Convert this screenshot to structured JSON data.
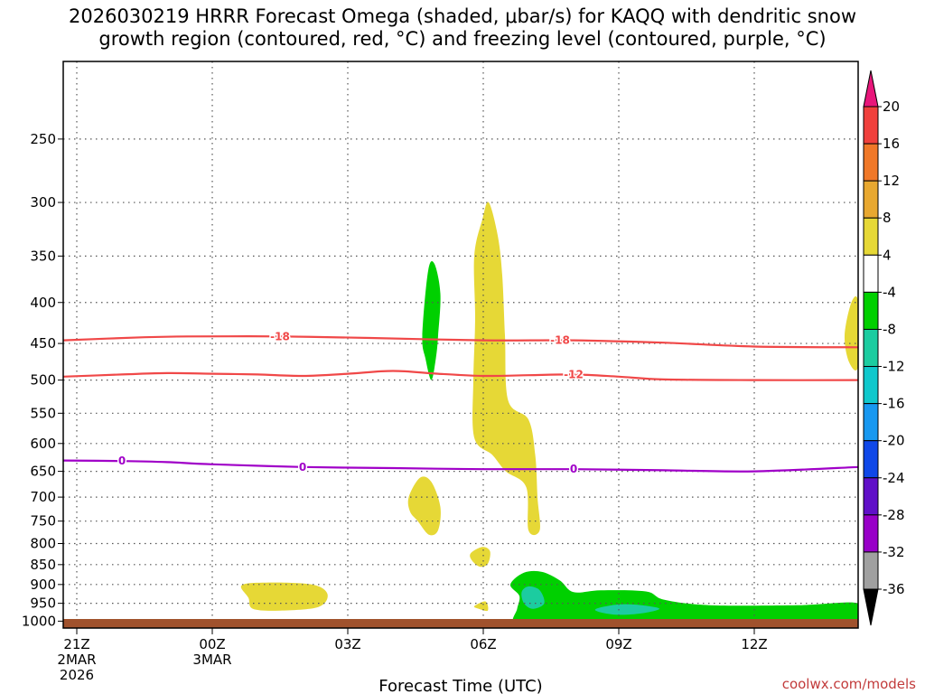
{
  "title_line1": "2026030219 HRRR Forecast Omega (shaded, μbar/s) for KAQQ with dendritic snow",
  "title_line2": "growth region (contoured, red, °C) and freezing level (contoured, purple, °C)",
  "credit": "coolwx.com/models",
  "chart_data": {
    "type": "time-height cross section",
    "xlabel": "Forecast Time (UTC)",
    "ylabel": "",
    "x_range_hours": [
      -3.3,
      14.3
    ],
    "ylim": [
      1020,
      200
    ],
    "y_scale": "log",
    "grid": true,
    "x_ticks": [
      {
        "hour": -3,
        "lines": [
          "21Z",
          "2MAR",
          "2026"
        ]
      },
      {
        "hour": 0,
        "lines": [
          "00Z",
          "3MAR"
        ]
      },
      {
        "hour": 3,
        "lines": [
          "03Z"
        ]
      },
      {
        "hour": 6,
        "lines": [
          "06Z"
        ]
      },
      {
        "hour": 9,
        "lines": [
          "09Z"
        ]
      },
      {
        "hour": 12,
        "lines": [
          "12Z"
        ]
      }
    ],
    "y_ticks": [
      250,
      300,
      350,
      400,
      450,
      500,
      550,
      600,
      650,
      700,
      750,
      800,
      850,
      900,
      950,
      1000
    ],
    "colorbar": {
      "labels": [
        "20",
        "16",
        "12",
        "8",
        "4",
        "-4",
        "-8",
        "-12",
        "-16",
        "-20",
        "-24",
        "-28",
        "-32",
        "-36"
      ],
      "colors": [
        "#e8167a",
        "#f0403c",
        "#f07828",
        "#e8a830",
        "#e6d836",
        "#ffffff",
        "#00d000",
        "#1ccca0",
        "#10c8cc",
        "#1898f0",
        "#1048e8",
        "#6010c8",
        "#9800c8",
        "#a0a0a0",
        "#000000"
      ]
    },
    "contours": [
      {
        "name": "-18",
        "color": "#f04848",
        "label_hours": [
          1.5,
          7.7
        ],
        "points": [
          [
            -3.3,
            446
          ],
          [
            -1.5,
            442
          ],
          [
            -0.5,
            441
          ],
          [
            1.5,
            441
          ],
          [
            3.5,
            443
          ],
          [
            6,
            446
          ],
          [
            8,
            446
          ],
          [
            10,
            449
          ],
          [
            12,
            454
          ],
          [
            14.3,
            455
          ]
        ]
      },
      {
        "name": "-12",
        "color": "#f04848",
        "label_hours": [
          8.0
        ],
        "points": [
          [
            -3.3,
            495
          ],
          [
            -2,
            492
          ],
          [
            -1,
            490
          ],
          [
            0,
            491
          ],
          [
            1,
            492
          ],
          [
            2,
            494
          ],
          [
            3,
            491
          ],
          [
            4,
            487
          ],
          [
            5,
            491
          ],
          [
            6,
            494
          ],
          [
            7,
            493
          ],
          [
            8,
            492
          ],
          [
            9,
            495
          ],
          [
            10,
            499
          ],
          [
            12,
            500
          ],
          [
            14.3,
            500
          ]
        ]
      },
      {
        "name": "0",
        "color": "#a000c8",
        "label_hours": [
          -2.0,
          2.0,
          8.0
        ],
        "points": [
          [
            -3.3,
            630
          ],
          [
            -2,
            631
          ],
          [
            -1,
            633
          ],
          [
            0,
            637
          ],
          [
            2,
            642
          ],
          [
            4,
            644
          ],
          [
            6,
            646
          ],
          [
            8,
            646
          ],
          [
            10,
            648
          ],
          [
            12,
            650
          ],
          [
            14.3,
            642
          ]
        ]
      }
    ],
    "shaded_regions": [
      {
        "value_range": [
          -8,
          -4
        ],
        "color": "#00d000",
        "points": [
          [
            4.65,
            440
          ],
          [
            4.78,
            365
          ],
          [
            4.92,
            358
          ],
          [
            5.05,
            390
          ],
          [
            5.0,
            440
          ],
          [
            4.95,
            470
          ],
          [
            4.85,
            500
          ],
          [
            4.72,
            470
          ]
        ]
      },
      {
        "value_range": [
          4,
          8
        ],
        "color": "#e6d836",
        "points": [
          [
            5.82,
            420
          ],
          [
            5.8,
            350
          ],
          [
            5.98,
            315
          ],
          [
            6.12,
            300
          ],
          [
            6.32,
            330
          ],
          [
            6.42,
            370
          ],
          [
            6.48,
            440
          ],
          [
            6.55,
            530
          ],
          [
            7.0,
            560
          ],
          [
            7.15,
            620
          ],
          [
            7.2,
            700
          ],
          [
            7.25,
            770
          ],
          [
            7.0,
            770
          ],
          [
            6.95,
            680
          ],
          [
            6.5,
            650
          ],
          [
            6.2,
            620
          ],
          [
            5.8,
            590
          ],
          [
            5.78,
            500
          ]
        ]
      },
      {
        "value_range": [
          4,
          8
        ],
        "color": "#e6d836",
        "points": [
          [
            4.35,
            700
          ],
          [
            4.6,
            662
          ],
          [
            4.85,
            670
          ],
          [
            5.05,
            720
          ],
          [
            5.0,
            770
          ],
          [
            4.8,
            780
          ],
          [
            4.55,
            750
          ],
          [
            4.38,
            730
          ]
        ]
      },
      {
        "value_range": [
          4,
          8
        ],
        "color": "#e6d836",
        "points": [
          [
            5.72,
            823
          ],
          [
            5.98,
            808
          ],
          [
            6.15,
            818
          ],
          [
            6.1,
            848
          ],
          [
            5.92,
            855
          ],
          [
            5.75,
            840
          ]
        ]
      },
      {
        "value_range": [
          4,
          8
        ],
        "color": "#e6d836",
        "points": [
          [
            5.8,
            958
          ],
          [
            6.05,
            945
          ],
          [
            6.1,
            970
          ],
          [
            5.9,
            965
          ]
        ]
      },
      {
        "value_range": [
          4,
          8
        ],
        "color": "#e6d836",
        "points": [
          [
            0.65,
            902
          ],
          [
            1.2,
            895
          ],
          [
            2.2,
            900
          ],
          [
            2.55,
            925
          ],
          [
            2.35,
            960
          ],
          [
            1.5,
            970
          ],
          [
            0.9,
            965
          ],
          [
            0.8,
            935
          ]
        ]
      },
      {
        "value_range": [
          4,
          8
        ],
        "color": "#e6d836",
        "points": [
          [
            14.0,
            440
          ],
          [
            14.15,
            400
          ],
          [
            14.3,
            400
          ],
          [
            14.3,
            480
          ],
          [
            14.1,
            475
          ]
        ]
      },
      {
        "value_range": [
          -8,
          -4
        ],
        "color": "#00d000",
        "points": [
          [
            6.6,
            900
          ],
          [
            6.9,
            870
          ],
          [
            7.3,
            868
          ],
          [
            7.7,
            890
          ],
          [
            8.0,
            920
          ],
          [
            8.6,
            915
          ],
          [
            9.6,
            918
          ],
          [
            10.0,
            940
          ],
          [
            11.0,
            955
          ],
          [
            13.0,
            955
          ],
          [
            14.3,
            950
          ],
          [
            14.3,
            1000
          ],
          [
            13.2,
            1005
          ],
          [
            11.0,
            1004
          ],
          [
            9.0,
            1005
          ],
          [
            7.5,
            1005
          ],
          [
            6.7,
            1005
          ],
          [
            6.75,
            965
          ],
          [
            6.8,
            930
          ]
        ]
      },
      {
        "value_range": [
          -12,
          -8
        ],
        "color": "#1ccca0",
        "points": [
          [
            6.85,
            920
          ],
          [
            7.0,
            905
          ],
          [
            7.25,
            915
          ],
          [
            7.35,
            950
          ],
          [
            7.1,
            965
          ],
          [
            6.9,
            950
          ]
        ]
      },
      {
        "value_range": [
          -12,
          -8
        ],
        "color": "#1ccca0",
        "points": [
          [
            8.5,
            965
          ],
          [
            9.0,
            953
          ],
          [
            9.5,
            955
          ],
          [
            9.9,
            965
          ],
          [
            9.5,
            978
          ],
          [
            9.0,
            982
          ],
          [
            8.6,
            975
          ]
        ]
      }
    ]
  }
}
